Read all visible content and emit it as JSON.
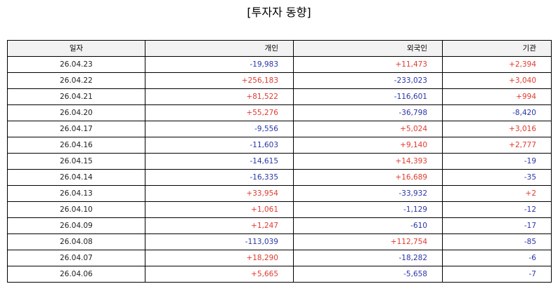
{
  "chart_data": {
    "type": "table",
    "title": "[투자자 동향]",
    "columns": [
      "일자",
      "개인",
      "외국인",
      "기관"
    ],
    "rows": [
      [
        "26.04.23",
        "-19,983",
        "+11,473",
        "+2,394"
      ],
      [
        "26.04.22",
        "+256,183",
        "-233,023",
        "+3,040"
      ],
      [
        "26.04.21",
        "+81,522",
        "-116,601",
        "+994"
      ],
      [
        "26.04.20",
        "+55,276",
        "-36,798",
        "-8,420"
      ],
      [
        "26.04.17",
        "-9,556",
        "+5,024",
        "+3,016"
      ],
      [
        "26.04.16",
        "-11,603",
        "+9,140",
        "+2,777"
      ],
      [
        "26.04.15",
        "-14,615",
        "+14,393",
        "-19"
      ],
      [
        "26.04.14",
        "-16,335",
        "+16,689",
        "-35"
      ],
      [
        "26.04.13",
        "+33,954",
        "-33,932",
        "+2"
      ],
      [
        "26.04.10",
        "+1,061",
        "-1,129",
        "-12"
      ],
      [
        "26.04.09",
        "+1,247",
        "-610",
        "-17"
      ],
      [
        "26.04.08",
        "-113,039",
        "+112,754",
        "-85"
      ],
      [
        "26.04.07",
        "+18,290",
        "-18,282",
        "-6"
      ],
      [
        "26.04.06",
        "+5,665",
        "-5,658",
        "-7"
      ]
    ],
    "colors": {
      "positive": "#e03b30",
      "negative": "#2b35a8"
    }
  }
}
